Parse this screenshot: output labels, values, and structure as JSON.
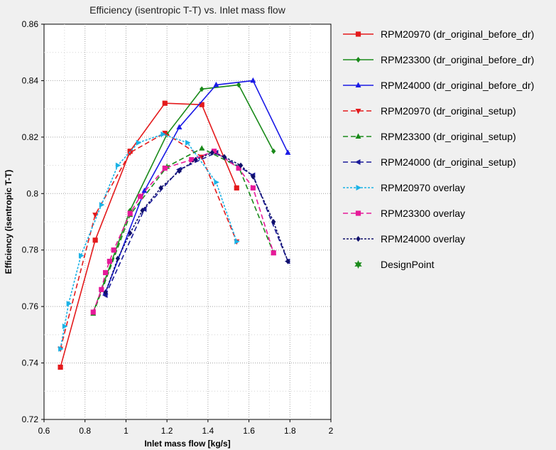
{
  "chart_data": {
    "type": "line",
    "title": "Efficiency (isentropic T-T) vs. Inlet mass flow",
    "xlabel": "Inlet mass flow [kg/s]",
    "ylabel": "Efficiency (isentropic T-T)",
    "xlim": [
      0.6,
      2.0
    ],
    "ylim": [
      0.72,
      0.86
    ],
    "xticks": [
      "0.6",
      "0.8",
      "1",
      "1.2",
      "1.4",
      "1.6",
      "1.8",
      "2"
    ],
    "yticks": [
      "0.72",
      "0.74",
      "0.76",
      "0.78",
      "0.8",
      "0.82",
      "0.84",
      "0.86"
    ],
    "grid": true,
    "legend_position": "right",
    "series": [
      {
        "name": "RPM20970 (dr_original_before_dr)",
        "color": "#e41a1c",
        "dash": "solid",
        "marker": "square",
        "x": [
          0.68,
          0.85,
          1.02,
          1.19,
          1.37,
          1.54
        ],
        "y": [
          0.7385,
          0.7835,
          0.815,
          0.832,
          0.8315,
          0.802
        ]
      },
      {
        "name": "RPM23300 (dr_original_before_dr)",
        "color": "#1a8a1a",
        "dash": "solid",
        "marker": "diamond",
        "x": [
          0.84,
          1.02,
          1.2,
          1.37,
          1.55,
          1.72
        ],
        "y": [
          0.758,
          0.794,
          0.821,
          0.837,
          0.8385,
          0.815
        ],
        "extra": []
      },
      {
        "name": "RPM24000 (dr_original_before_dr)",
        "color": "#1a1ae6",
        "dash": "solid",
        "marker": "triangle-up",
        "x": [
          0.9,
          1.09,
          1.26,
          1.44,
          1.62,
          1.79
        ],
        "y": [
          0.765,
          0.801,
          0.8235,
          0.8385,
          0.84,
          0.8145
        ]
      },
      {
        "name": "RPM20970 (dr_original_setup)",
        "color": "#e41a1c",
        "dash": "dash",
        "marker": "triangle-down",
        "x": [
          0.68,
          0.85,
          1.02,
          1.19,
          1.37,
          1.54
        ],
        "y": [
          0.745,
          0.7925,
          0.8145,
          0.8215,
          0.813,
          0.783
        ]
      },
      {
        "name": "RPM23300 (dr_original_setup)",
        "color": "#1a8a1a",
        "dash": "dash",
        "marker": "triangle-up",
        "x": [
          0.84,
          1.02,
          1.2,
          1.37,
          1.55,
          1.72
        ],
        "y": [
          0.7575,
          0.7925,
          0.8095,
          0.816,
          0.8095,
          0.779
        ]
      },
      {
        "name": "RPM24000 (dr_original_setup)",
        "color": "#1a1a99",
        "dash": "dash",
        "marker": "triangle-left",
        "x": [
          0.9,
          1.09,
          1.26,
          1.44,
          1.62,
          1.79
        ],
        "y": [
          0.764,
          0.7945,
          0.8085,
          0.8145,
          0.8065,
          0.776
        ]
      },
      {
        "name": "RPM20970 overlay",
        "color": "#1ab2e6",
        "dash": "dot",
        "marker": "triangle-right",
        "x": [
          0.68,
          0.7,
          0.72,
          0.78,
          0.88,
          0.96,
          1.06,
          1.18,
          1.3,
          1.44,
          1.54
        ],
        "y": [
          0.745,
          0.753,
          0.761,
          0.778,
          0.796,
          0.81,
          0.818,
          0.821,
          0.818,
          0.804,
          0.783
        ]
      },
      {
        "name": "RPM23300 overlay",
        "color": "#e61a99",
        "dash": "dash",
        "marker": "square",
        "x": [
          0.84,
          0.88,
          0.9,
          0.92,
          0.94,
          1.02,
          1.07,
          1.19,
          1.32,
          1.43,
          1.55,
          1.62,
          1.72
        ],
        "y": [
          0.758,
          0.766,
          0.772,
          0.776,
          0.78,
          0.793,
          0.799,
          0.809,
          0.812,
          0.815,
          0.809,
          0.802,
          0.779
        ]
      },
      {
        "name": "RPM24000 overlay",
        "color": "#10106b",
        "dash": "dot",
        "marker": "diamond",
        "x": [
          0.9,
          0.96,
          1.02,
          1.08,
          1.17,
          1.26,
          1.34,
          1.42,
          1.48,
          1.56,
          1.62,
          1.72,
          1.79
        ],
        "y": [
          0.765,
          0.777,
          0.786,
          0.794,
          0.802,
          0.808,
          0.812,
          0.8145,
          0.813,
          0.81,
          0.806,
          0.79,
          0.776
        ]
      }
    ],
    "legend_extra": {
      "name": "DesignPoint",
      "color": "#1a8a1a",
      "marker": "star"
    }
  }
}
